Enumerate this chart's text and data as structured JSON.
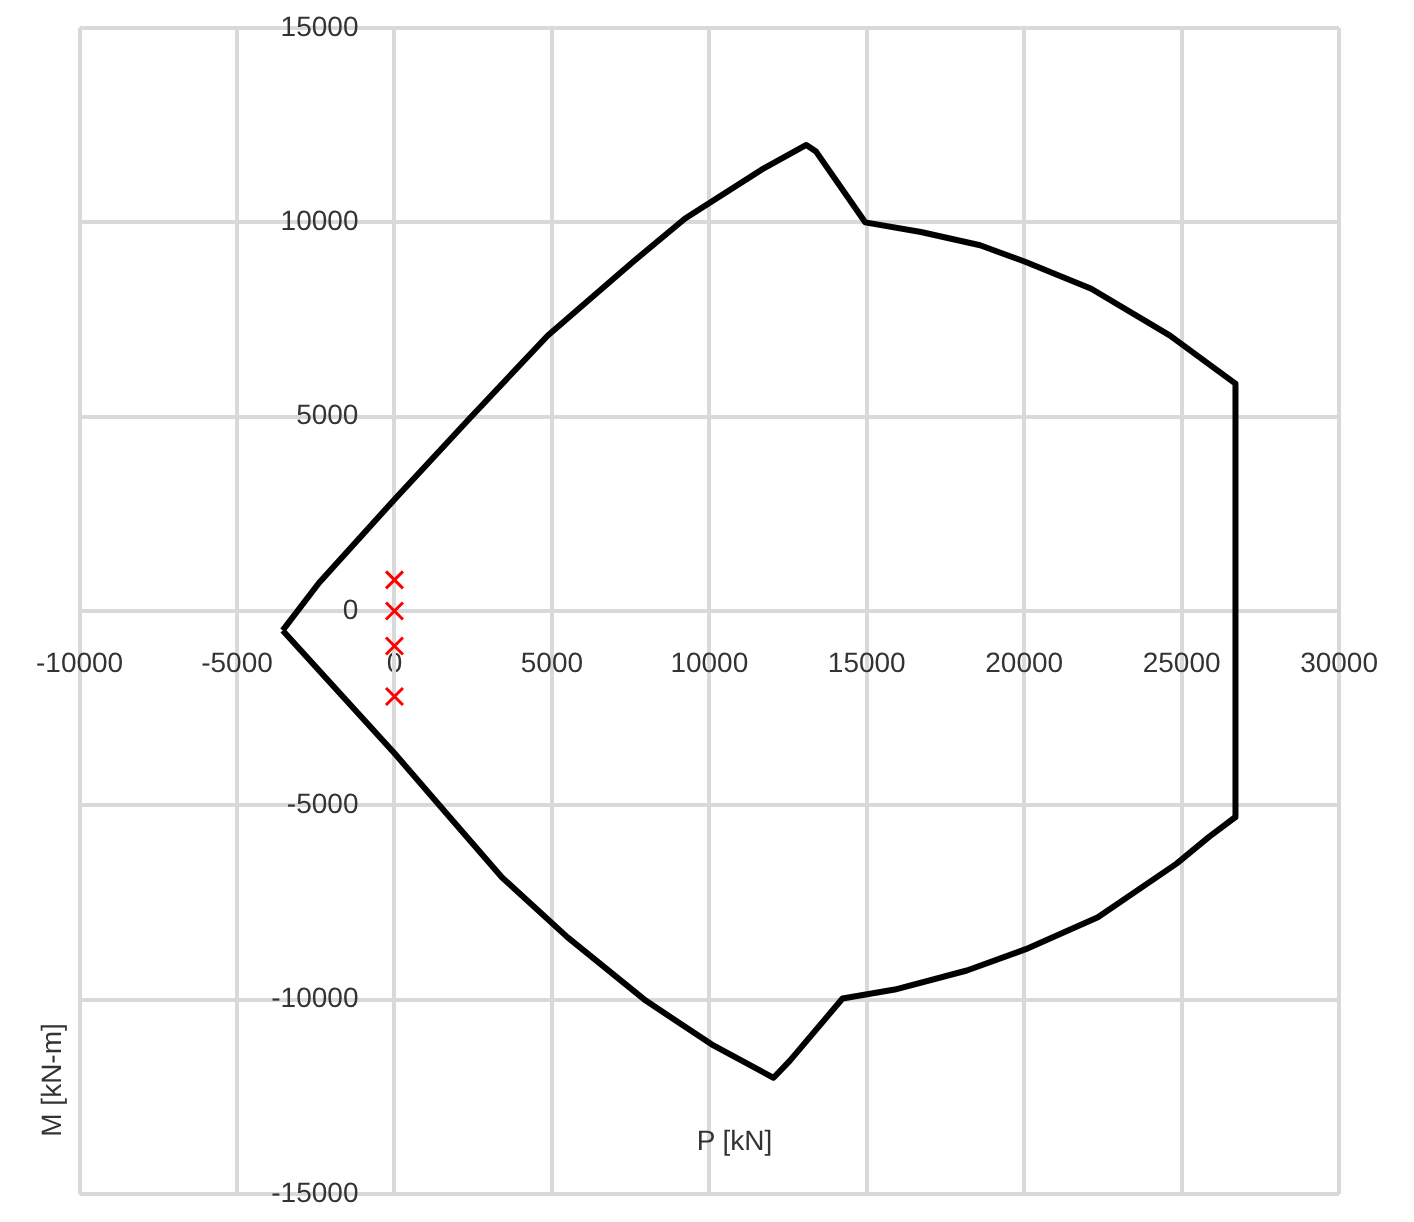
{
  "chart_data": {
    "type": "line",
    "xlabel": "P [kN]",
    "ylabel": "M [kN-m]",
    "xlim": [
      -10000,
      30000
    ],
    "ylim": [
      -15000,
      15000
    ],
    "xticks": [
      -10000,
      -5000,
      0,
      5000,
      10000,
      15000,
      20000,
      25000,
      30000
    ],
    "yticks": [
      -15000,
      -10000,
      -5000,
      0,
      5000,
      10000,
      15000
    ],
    "grid": true,
    "legend": false,
    "series": [
      {
        "color": "#000000",
        "marker": "none",
        "line_style": "solid",
        "x": [
          -3550,
          -2400,
          0,
          2370,
          4870,
          7570,
          9230,
          11730,
          13080,
          13390,
          14950,
          16720,
          18600,
          20050,
          22130,
          24620,
          26710,
          26710
        ],
        "values": [
          -500,
          720,
          2870,
          4940,
          7090,
          8980,
          10100,
          11390,
          11990,
          11820,
          10000,
          9750,
          9410,
          8980,
          8290,
          7090,
          5850,
          -5300
        ]
      },
      {
        "color": "#000000",
        "marker": "none",
        "line_style": "solid",
        "x": [
          -3550,
          0,
          1750,
          3410,
          5490,
          7990,
          10070,
          12040,
          12560,
          14230,
          15890,
          18180,
          20050,
          22340,
          24840,
          25870,
          26710
        ],
        "values": [
          -500,
          -3660,
          -5300,
          -6850,
          -8390,
          -10030,
          -11150,
          -12010,
          -11570,
          -9970,
          -9740,
          -9250,
          -8700,
          -7880,
          -6500,
          -5810,
          -5300
        ]
      },
      {
        "type": "scatter",
        "color": "#ff0000",
        "marker": "cross",
        "x": [
          0,
          0,
          0,
          0
        ],
        "values": [
          800,
          0,
          -900,
          -2200
        ]
      }
    ]
  }
}
